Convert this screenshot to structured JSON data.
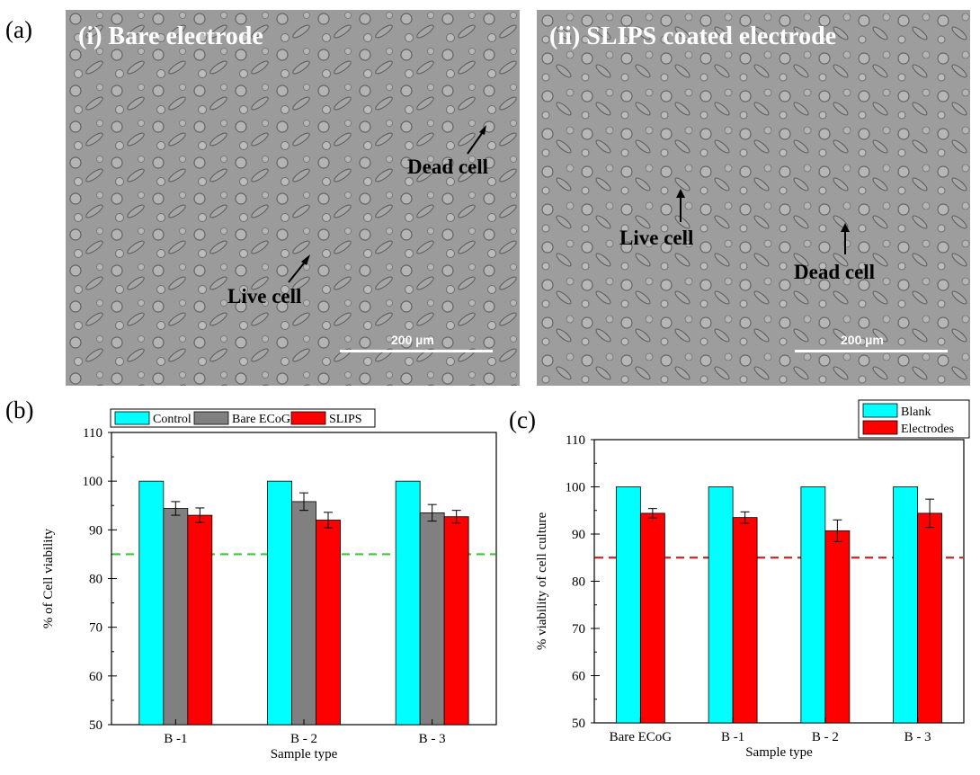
{
  "panel_labels": {
    "a": "(a)",
    "b": "(b)",
    "c": "(c)"
  },
  "micrographs": [
    {
      "title": "(i) Bare electrode",
      "dead_label": "Dead cell",
      "live_label": "Live cell",
      "scale_label": "200 µm"
    },
    {
      "title": "(ii) SLIPS coated electrode",
      "dead_label": "Dead cell",
      "live_label": "Live cell",
      "scale_label": "200 µm"
    }
  ],
  "colors": {
    "cyan": "#00FFFF",
    "gray": "#808080",
    "red": "#FF0000",
    "green_line": "#33CC33",
    "red_line": "#CC2222"
  },
  "chart_data": [
    {
      "type": "bar",
      "categories": [
        "B -1",
        "B - 2",
        "B - 3"
      ],
      "series": [
        {
          "name": "Control",
          "values": [
            100,
            100,
            100
          ],
          "errors": [
            0,
            0,
            0
          ],
          "color": "#00FFFF"
        },
        {
          "name": "Bare ECoG",
          "values": [
            94.4,
            95.8,
            93.5
          ],
          "errors": [
            1.4,
            1.8,
            1.7
          ],
          "color": "#808080"
        },
        {
          "name": "SLIPS",
          "values": [
            93.0,
            92.0,
            92.7
          ],
          "errors": [
            1.5,
            1.6,
            1.3
          ],
          "color": "#FF0000"
        }
      ],
      "xlabel": "Sample type",
      "ylabel": "% of Cell viability",
      "ylim": [
        50,
        110
      ],
      "yticks": [
        50,
        60,
        70,
        80,
        90,
        100,
        110
      ],
      "reference_line": {
        "value": 85,
        "color": "#33CC33",
        "style": "dashed"
      },
      "legend": "top, horizontal"
    },
    {
      "type": "bar",
      "categories": [
        "Bare  ECoG",
        "B -1",
        "B - 2",
        "B - 3"
      ],
      "series": [
        {
          "name": "Blank",
          "values": [
            100,
            100,
            100,
            100
          ],
          "errors": [
            0,
            0,
            0,
            0
          ],
          "color": "#00FFFF"
        },
        {
          "name": "Electrodes",
          "values": [
            94.4,
            93.5,
            90.7,
            94.4
          ],
          "errors": [
            1.0,
            1.2,
            2.3,
            3.0
          ],
          "color": "#FF0000"
        }
      ],
      "xlabel": "Sample type",
      "ylabel": "% viability of cell culture",
      "ylim": [
        50,
        110
      ],
      "yticks": [
        50,
        60,
        70,
        80,
        90,
        100,
        110
      ],
      "reference_line": {
        "value": 85,
        "color": "#CC2222",
        "style": "dashed"
      },
      "legend": "top-right"
    }
  ]
}
